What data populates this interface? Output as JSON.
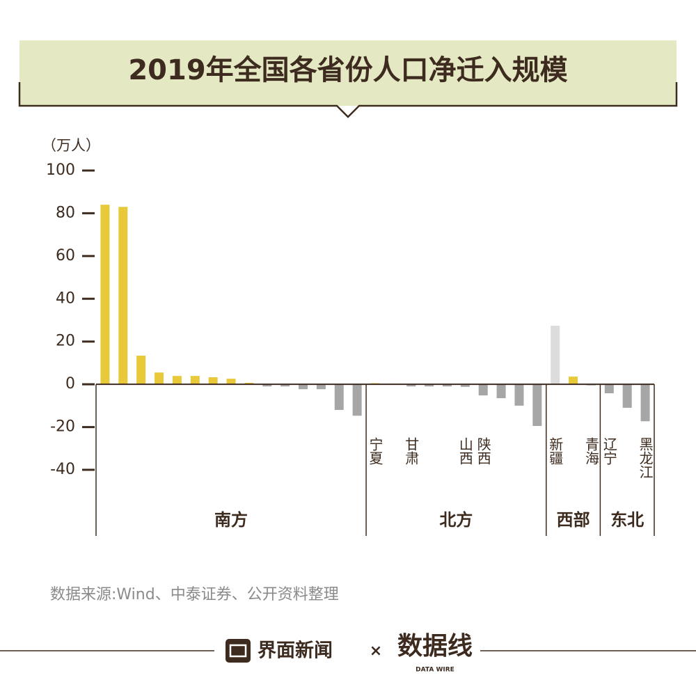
{
  "chart_data": {
    "type": "bar",
    "title": "2019年全国各省份人口净迁入规模",
    "y_unit": "（万人）",
    "categories": [
      null,
      null,
      null,
      null,
      null,
      null,
      null,
      null,
      null,
      null,
      null,
      null,
      null,
      null,
      null,
      "宁夏",
      null,
      "甘肃",
      null,
      null,
      "山西",
      "陕西",
      null,
      null,
      null,
      "新疆",
      null,
      "青海",
      "辽宁",
      null,
      "黑龙江"
    ],
    "values": [
      84,
      83,
      13.4,
      5.5,
      3.9,
      3.9,
      3.3,
      2.6,
      0.7,
      -1,
      -1,
      -2.3,
      -2.3,
      -12,
      -14.7,
      0.5,
      0.3,
      -1,
      -1,
      -1,
      -1.2,
      -5.2,
      -6.5,
      -10,
      -19.5,
      27.4,
      3.6,
      -0.5,
      -4.2,
      -11,
      -17.3
    ],
    "colors": [
      "#e8c93a",
      "#e8c93a",
      "#e8c93a",
      "#e8c93a",
      "#e8c93a",
      "#e8c93a",
      "#e8c93a",
      "#e8c93a",
      "#e8c93a",
      "#a6a6a6",
      "#a6a6a6",
      "#a6a6a6",
      "#a6a6a6",
      "#a6a6a6",
      "#a6a6a6",
      "#e8c93a",
      "#e8c93a",
      "#a6a6a6",
      "#a6a6a6",
      "#a6a6a6",
      "#a6a6a6",
      "#a6a6a6",
      "#a6a6a6",
      "#a6a6a6",
      "#a6a6a6",
      "#dcdcdc",
      "#e8c93a",
      "#a6a6a6",
      "#a6a6a6",
      "#a6a6a6",
      "#a6a6a6"
    ],
    "groups": [
      {
        "name": "南方",
        "start": 0,
        "end": 14
      },
      {
        "name": "北方",
        "start": 15,
        "end": 24
      },
      {
        "name": "西部",
        "start": 25,
        "end": 27
      },
      {
        "name": "东北",
        "start": 28,
        "end": 30
      }
    ],
    "ylim": [
      -40,
      100
    ],
    "yticks": [
      100,
      80,
      60,
      40,
      20,
      0,
      -20,
      -40
    ],
    "source": "数据来源:Wind、中泰证券、公开资料整理",
    "footer": {
      "brand": "界面新闻",
      "times": "×",
      "logo": "数据线",
      "logo_sub": "DATA WIRE"
    }
  }
}
